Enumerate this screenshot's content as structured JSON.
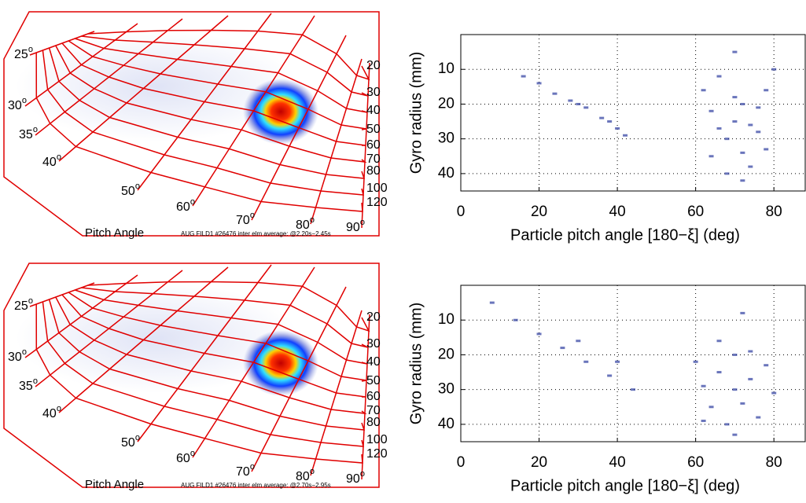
{
  "degree_mark": "o",
  "panels": [
    {
      "gyro_labels": [
        "20",
        "30",
        "40",
        "50",
        "60",
        "70",
        "80",
        "100",
        "120"
      ],
      "pitch_labels": [
        "25",
        "30",
        "35",
        "40",
        "50",
        "60",
        "70",
        "80",
        "90"
      ],
      "axis_title": "Pitch Angle",
      "caption": "AUG FILD1 #26476 inter elm average: @2.20s−2.45s"
    },
    {
      "gyro_labels": [
        "20",
        "30",
        "40",
        "50",
        "60",
        "70",
        "80",
        "100",
        "120"
      ],
      "pitch_labels": [
        "25",
        "30",
        "35",
        "40",
        "50",
        "60",
        "70",
        "80",
        "90"
      ],
      "axis_title": "Pitch Angle",
      "caption": "AUG FILD1 #26476 inter elm average: @2.70s−2.95s"
    }
  ],
  "chart_data": [
    {
      "type": "scatter",
      "xlabel": "Particle pitch angle [180−ξ] (deg)",
      "ylabel": "Gyro radius (mm)",
      "xlim": [
        0,
        88
      ],
      "ylim": [
        45,
        0
      ],
      "xticks": [
        0,
        20,
        40,
        60,
        80
      ],
      "yticks": [
        10,
        20,
        30,
        40
      ],
      "grid": true,
      "color": "#2b3a9e",
      "x": [
        16,
        20,
        24,
        28,
        32,
        36,
        40,
        42,
        30,
        38,
        62,
        64,
        66,
        68,
        70,
        70,
        72,
        72,
        74,
        74,
        76,
        76,
        78,
        78,
        68,
        70,
        66,
        80,
        72,
        64
      ],
      "y": [
        12,
        14,
        17,
        19,
        21,
        24,
        27,
        29,
        20,
        25,
        16,
        22,
        27,
        30,
        18,
        25,
        20,
        34,
        26,
        38,
        21,
        28,
        16,
        33,
        40,
        5,
        12,
        10,
        42,
        35
      ]
    },
    {
      "type": "scatter",
      "xlabel": "Particle pitch angle [180−ξ] (deg)",
      "ylabel": "Gyro radius (mm)",
      "xlim": [
        0,
        88
      ],
      "ylim": [
        45,
        0
      ],
      "xticks": [
        0,
        20,
        40,
        60,
        80
      ],
      "yticks": [
        10,
        20,
        30,
        40
      ],
      "grid": true,
      "color": "#2b3a9e",
      "x": [
        8,
        14,
        20,
        26,
        32,
        38,
        44,
        30,
        40,
        60,
        62,
        64,
        66,
        68,
        70,
        70,
        72,
        72,
        74,
        74,
        76,
        78,
        66,
        70,
        62,
        80
      ],
      "y": [
        5,
        10,
        14,
        18,
        22,
        26,
        30,
        16,
        22,
        22,
        29,
        35,
        25,
        40,
        20,
        30,
        8,
        34,
        19,
        27,
        38,
        23,
        16,
        43,
        39,
        31
      ]
    }
  ]
}
